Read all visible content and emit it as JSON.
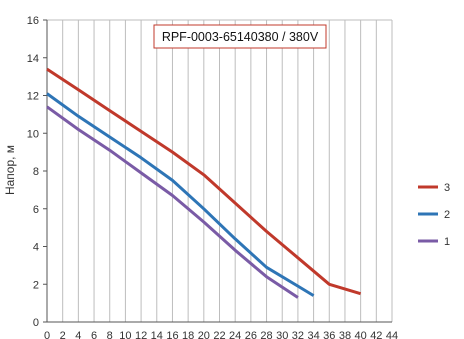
{
  "chart_data": {
    "type": "line",
    "title": "RPF-0003-65140380 / 380V",
    "xlabel": "",
    "ylabel": "Напор, м",
    "xlim": [
      0,
      44
    ],
    "ylim": [
      0,
      16
    ],
    "x_ticks": [
      0,
      2,
      4,
      6,
      8,
      10,
      12,
      14,
      16,
      18,
      20,
      22,
      24,
      26,
      28,
      30,
      32,
      34,
      36,
      38,
      40,
      42,
      44
    ],
    "y_ticks": [
      0,
      2,
      4,
      6,
      8,
      10,
      12,
      14,
      16
    ],
    "grid": {
      "vertical": true,
      "horizontal": false
    },
    "legend_position": "right",
    "series": [
      {
        "name": "3",
        "color": "#c0392b",
        "x": [
          0,
          4,
          8,
          12,
          16,
          20,
          24,
          28,
          32,
          36,
          40
        ],
        "y": [
          13.4,
          12.3,
          11.2,
          10.1,
          9.0,
          7.8,
          6.3,
          4.8,
          3.4,
          2.0,
          1.5
        ]
      },
      {
        "name": "2",
        "color": "#2e75b6",
        "x": [
          0,
          4,
          8,
          12,
          16,
          20,
          24,
          28,
          32,
          34
        ],
        "y": [
          12.1,
          10.9,
          9.8,
          8.7,
          7.5,
          6.0,
          4.4,
          2.9,
          1.9,
          1.4
        ]
      },
      {
        "name": "1",
        "color": "#7a5ba6",
        "x": [
          0,
          4,
          8,
          12,
          16,
          20,
          24,
          28,
          32
        ],
        "y": [
          11.4,
          10.2,
          9.1,
          7.9,
          6.7,
          5.3,
          3.8,
          2.4,
          1.3
        ]
      }
    ]
  }
}
